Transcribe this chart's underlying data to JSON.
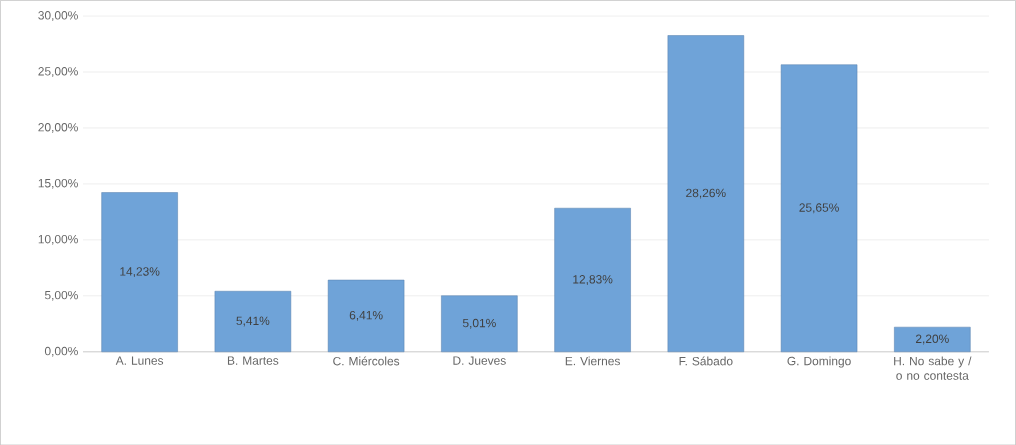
{
  "chart_data": {
    "type": "bar",
    "categories": [
      "A. Lunes",
      "B. Martes",
      "C. Miércoles",
      "D. Jueves",
      "E. Viernes",
      "F. Sábado",
      "G. Domingo",
      "H. No sabe y / o no contesta"
    ],
    "values": [
      14.23,
      5.41,
      6.41,
      5.01,
      12.83,
      28.26,
      25.65,
      2.2
    ],
    "value_labels": [
      "14,23%",
      "5,41%",
      "6,41%",
      "5,01%",
      "12,83%",
      "28,26%",
      "25,65%",
      "2,20%"
    ],
    "color": "#6fa3d8",
    "ylim": [
      0,
      30
    ],
    "yticks": [
      {
        "value": 0,
        "label": "0,00%"
      },
      {
        "value": 5,
        "label": "5,00%"
      },
      {
        "value": 10,
        "label": "10,00%"
      },
      {
        "value": 15,
        "label": "15,00%"
      },
      {
        "value": 20,
        "label": "20,00%"
      },
      {
        "value": 25,
        "label": "25,00%"
      },
      {
        "value": 30,
        "label": "30,00%"
      }
    ],
    "grid": "y"
  }
}
